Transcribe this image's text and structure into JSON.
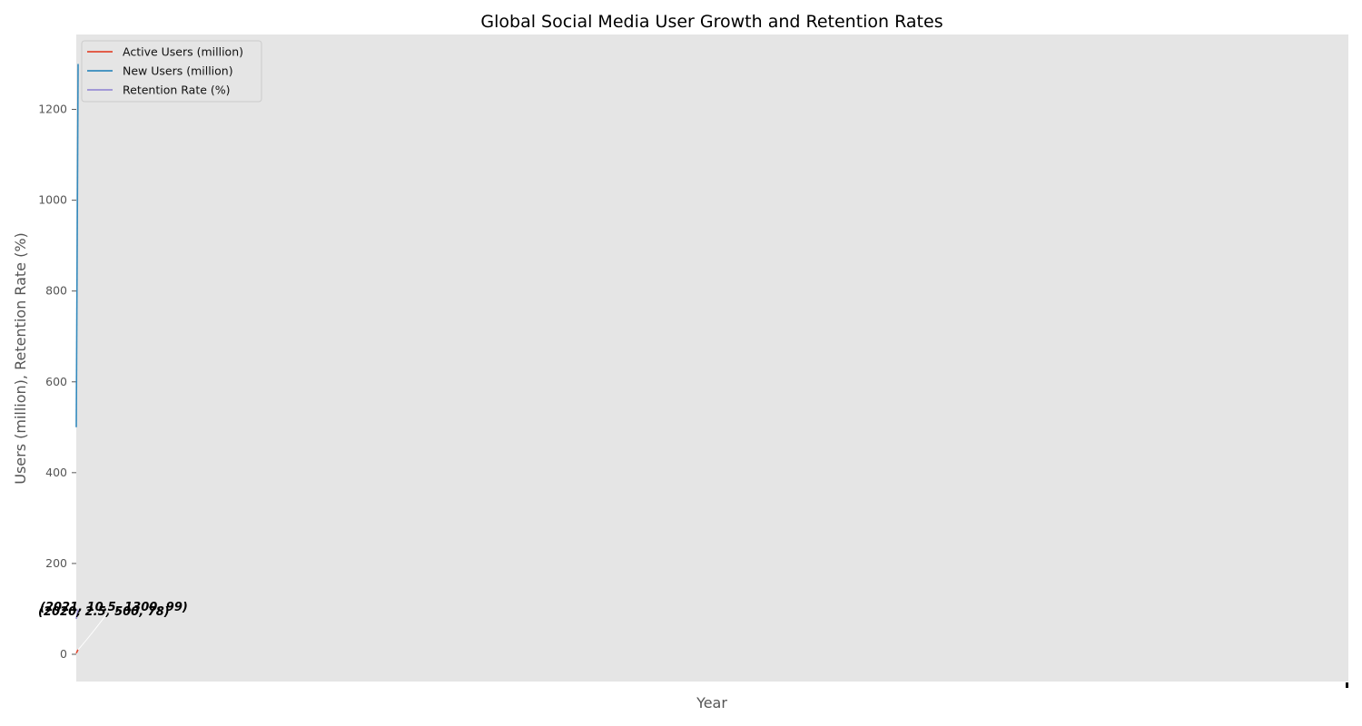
{
  "chart_data": {
    "type": "line",
    "title": "Global Social Media User Growth and Retention Rates",
    "xlabel": "Year",
    "ylabel": "Users (million), Retention Rate (%)",
    "x": [
      2020,
      2021
    ],
    "series": [
      {
        "name": "Active Users (million)",
        "values": [
          2.5,
          10.5
        ],
        "color": "#E24A33"
      },
      {
        "name": "New Users (million)",
        "values": [
          500,
          1300
        ],
        "color": "#348ABD"
      },
      {
        "name": "Retention Rate (%)",
        "values": [
          78,
          99
        ],
        "color": "#988ED5"
      }
    ],
    "annotations": [
      "(2020, 2.5, 500, 78)",
      "(2021, 10.5, 1300, 99)"
    ],
    "yticks": [
      0,
      200,
      400,
      600,
      800,
      1000,
      1200
    ],
    "ylim": [
      -60,
      1365
    ],
    "grid": false,
    "legend_position": "upper-left",
    "background": "#E5E5E5"
  }
}
